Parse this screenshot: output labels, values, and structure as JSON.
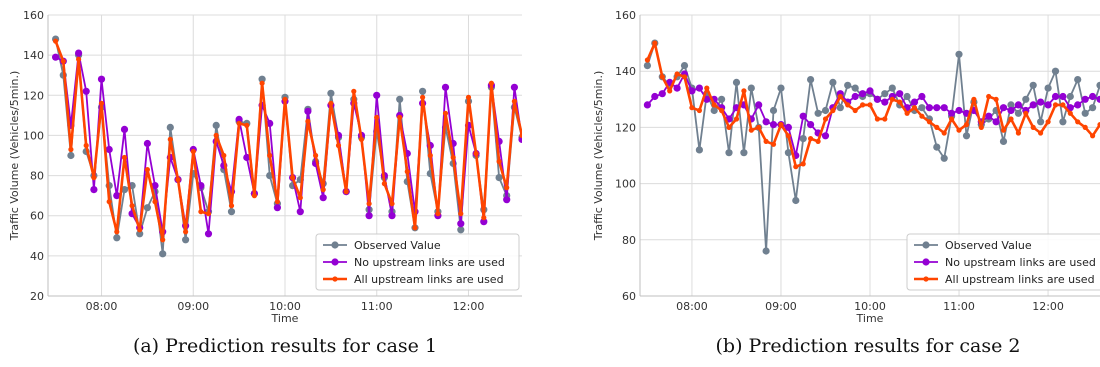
{
  "colors": {
    "observed": "#708090",
    "no_upstream": "#9400d3",
    "all_upstream": "#ff4500",
    "grid": "#dcdcdc",
    "axis": "#bfbfbf"
  },
  "chart_data": [
    {
      "type": "line",
      "caption": "(a) Prediction results for case 1",
      "xlabel": "Time",
      "ylabel": "Traffic Volume (Vehicles/5min.)",
      "ylim": [
        20,
        160
      ],
      "yticks": [
        20,
        40,
        60,
        80,
        100,
        120,
        140,
        160
      ],
      "xlim": [
        "07:25",
        "12:35"
      ],
      "xticks": [
        "08:00",
        "09:00",
        "10:00",
        "11:00",
        "12:00"
      ],
      "grid": true,
      "legend_position": "bottom-right",
      "x_start": "07:30",
      "x_step_minutes": 5,
      "series": [
        {
          "name": "Observed Value",
          "color": "#708090",
          "values": [
            148,
            130,
            90,
            140,
            92,
            80,
            114,
            75,
            49,
            73,
            75,
            51,
            64,
            72,
            41,
            104,
            78,
            48,
            81,
            74,
            62,
            105,
            83,
            62,
            107,
            106,
            71,
            128,
            80,
            66,
            119,
            75,
            78,
            113,
            87,
            76,
            121,
            99,
            72,
            118,
            99,
            63,
            102,
            79,
            62,
            118,
            77,
            54,
            122,
            81,
            62,
            104,
            86,
            53,
            117,
            90,
            63,
            124,
            79,
            70,
            114,
            99
          ]
        },
        {
          "name": "No upstream links are used",
          "color": "#9400d3",
          "values": [
            139,
            137,
            105,
            141,
            122,
            73,
            128,
            93,
            70,
            103,
            61,
            54,
            96,
            75,
            52,
            89,
            78,
            55,
            93,
            75,
            51,
            97,
            85,
            72,
            108,
            89,
            71,
            115,
            106,
            64,
            117,
            79,
            62,
            112,
            86,
            69,
            115,
            100,
            72,
            116,
            100,
            60,
            120,
            80,
            60,
            110,
            91,
            62,
            116,
            95,
            60,
            124,
            96,
            56,
            105,
            91,
            57,
            125,
            97,
            68,
            124,
            98
          ]
        },
        {
          "name": "All upstream links are used",
          "color": "#ff4500",
          "values": [
            147,
            137,
            93,
            138,
            95,
            79,
            116,
            67,
            52,
            89,
            65,
            53,
            83,
            67,
            48,
            98,
            78,
            52,
            92,
            62,
            61,
            100,
            90,
            65,
            106,
            105,
            70,
            126,
            90,
            67,
            118,
            79,
            69,
            107,
            90,
            73,
            116,
            95,
            72,
            122,
            98,
            66,
            109,
            76,
            66,
            109,
            82,
            54,
            119,
            90,
            61,
            111,
            89,
            61,
            119,
            91,
            59,
            126,
            87,
            74,
            117,
            100
          ]
        }
      ]
    },
    {
      "type": "line",
      "caption": "(b) Prediction results for case 2",
      "xlabel": "Time",
      "ylabel": "Traffic Volume (Vehicles/5min.)",
      "ylim": [
        60,
        160
      ],
      "yticks": [
        60,
        80,
        100,
        120,
        140,
        160
      ],
      "xlim": [
        "07:25",
        "12:35"
      ],
      "xticks": [
        "08:00",
        "09:00",
        "10:00",
        "11:00",
        "12:00"
      ],
      "grid": true,
      "legend_position": "bottom-right",
      "x_start": "07:30",
      "x_step_minutes": 5,
      "series": [
        {
          "name": "Observed Value",
          "color": "#708090",
          "values": [
            142,
            150,
            138,
            135,
            138,
            142,
            134,
            112,
            132,
            126,
            130,
            111,
            136,
            111,
            134,
            120,
            76,
            126,
            134,
            111,
            94,
            116,
            137,
            125,
            126,
            136,
            127,
            135,
            134,
            131,
            132,
            130,
            132,
            134,
            128,
            131,
            126,
            127,
            123,
            113,
            109,
            124,
            146,
            117,
            129,
            121,
            123,
            126,
            115,
            128,
            125,
            130,
            135,
            122,
            134,
            140,
            122,
            131,
            137,
            125,
            127,
            135,
            137,
            127,
            138,
            144,
            135
          ]
        },
        {
          "name": "No upstream links are used",
          "color": "#9400d3",
          "values": [
            128,
            131,
            132,
            136,
            134,
            139,
            133,
            134,
            130,
            130,
            127,
            123,
            127,
            128,
            123,
            128,
            122,
            121,
            121,
            120,
            110,
            124,
            121,
            118,
            117,
            127,
            132,
            129,
            131,
            132,
            133,
            130,
            129,
            131,
            132,
            127,
            129,
            131,
            127,
            127,
            127,
            125,
            126,
            125,
            126,
            122,
            124,
            122,
            127,
            126,
            128,
            126,
            128,
            129,
            128,
            131,
            131,
            127,
            128,
            130,
            131,
            130,
            128,
            129,
            131,
            133,
            131
          ]
        },
        {
          "name": "All upstream links are used",
          "color": "#ff4500",
          "values": [
            144,
            150,
            138,
            133,
            139,
            138,
            127,
            126,
            134,
            128,
            126,
            120,
            123,
            133,
            119,
            120,
            115,
            114,
            121,
            117,
            106,
            107,
            116,
            115,
            123,
            126,
            131,
            128,
            126,
            128,
            128,
            123,
            123,
            130,
            129,
            125,
            127,
            124,
            122,
            120,
            118,
            123,
            119,
            121,
            130,
            120,
            131,
            130,
            119,
            123,
            118,
            125,
            120,
            118,
            122,
            128,
            128,
            125,
            122,
            120,
            117,
            121,
            124,
            130,
            133,
            125,
            126
          ]
        }
      ]
    }
  ]
}
